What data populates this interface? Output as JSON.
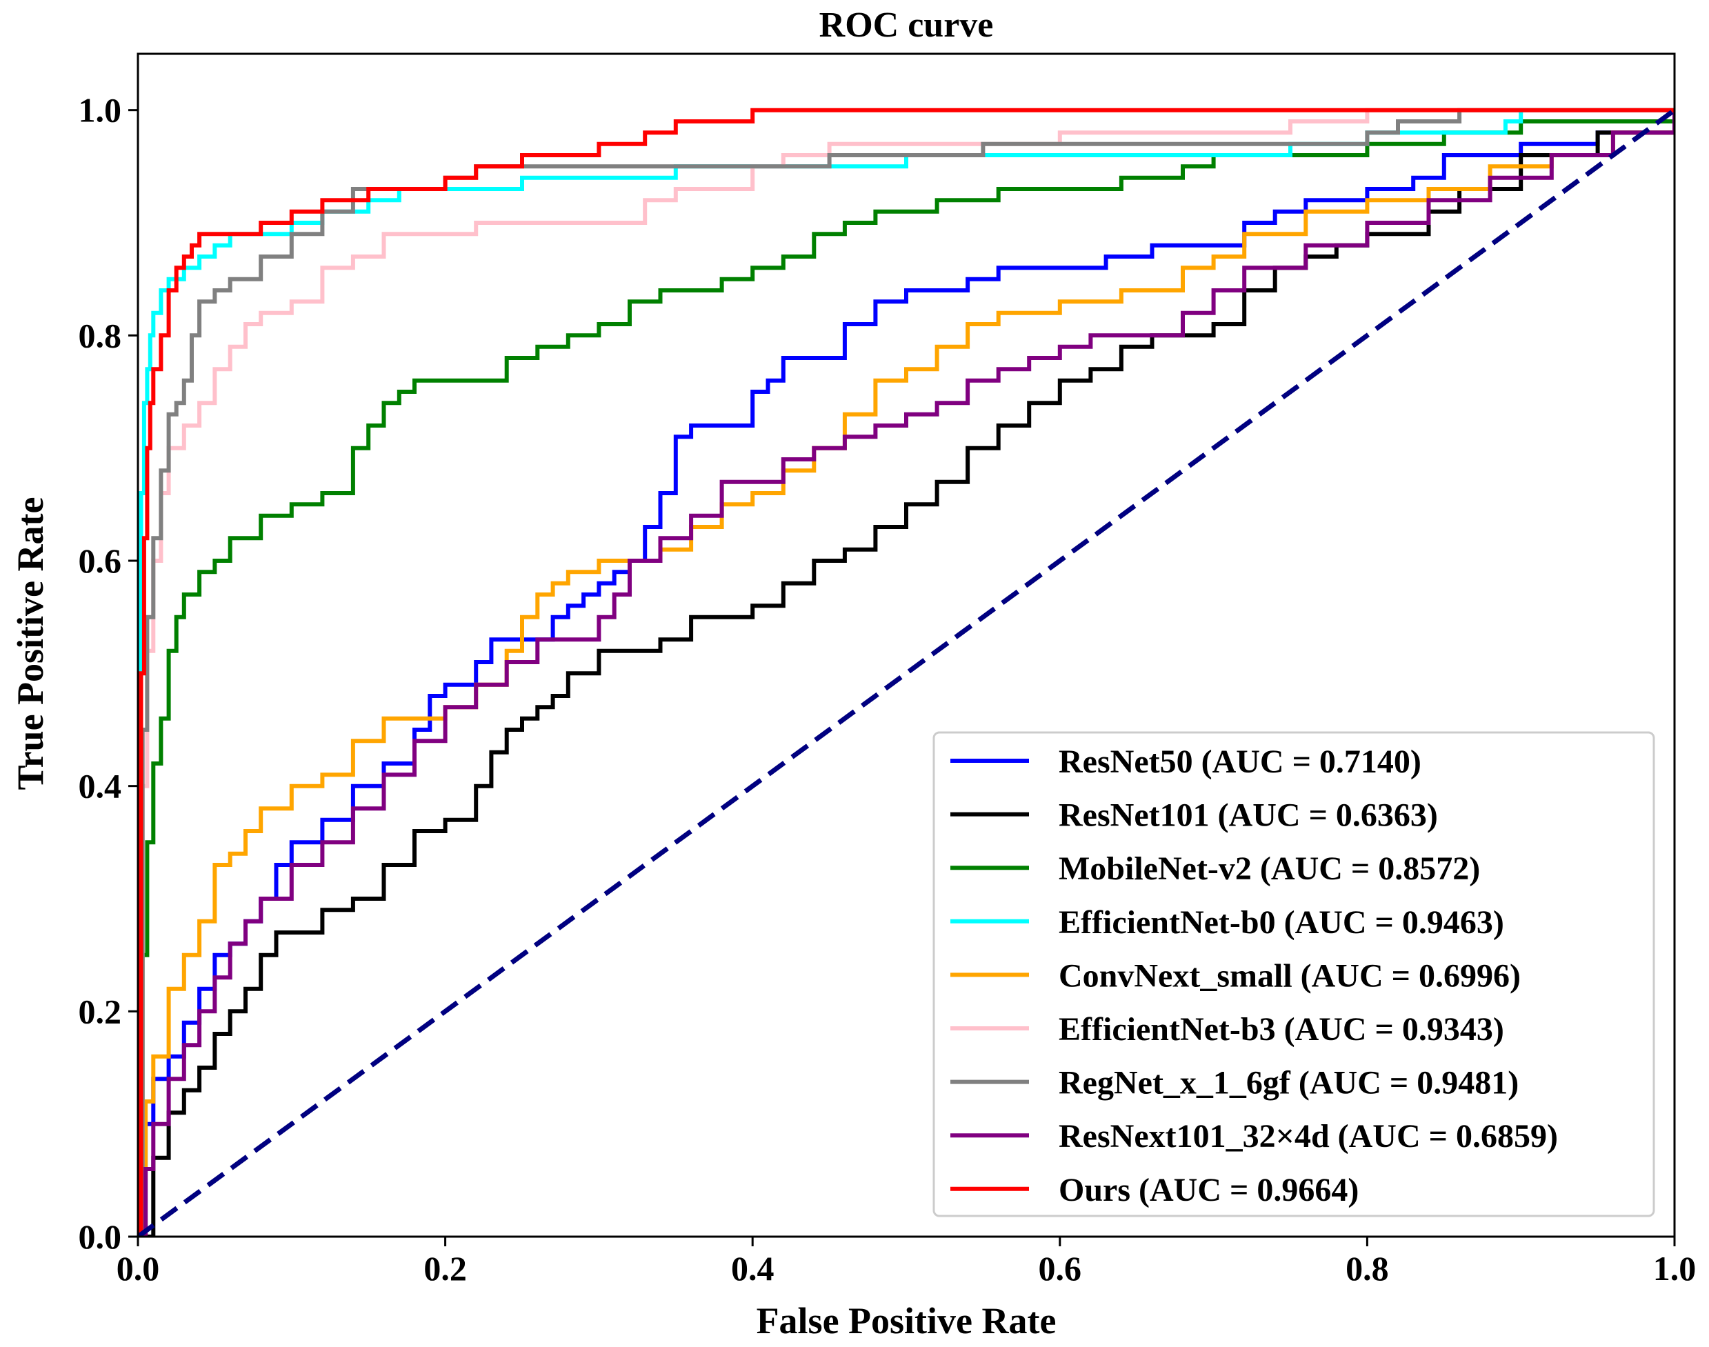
{
  "chart_data": {
    "type": "line",
    "title": "ROC curve",
    "xlabel": "False Positive Rate",
    "ylabel": "True Positive Rate",
    "xlim": [
      0.0,
      1.0
    ],
    "ylim": [
      0.0,
      1.05
    ],
    "xticks": [
      "0.0",
      "0.2",
      "0.4",
      "0.6",
      "0.8",
      "1.0"
    ],
    "yticks": [
      "0.0",
      "0.2",
      "0.4",
      "0.6",
      "0.8",
      "1.0"
    ],
    "grid": false,
    "legend_position": "bottom-right",
    "diagonal": {
      "color": "#000080",
      "x": [
        0,
        1
      ],
      "y": [
        0,
        1
      ]
    },
    "series": [
      {
        "name": "ResNet50 (AUC = 0.7140)",
        "color": "#0000ff",
        "x": [
          0,
          0.005,
          0.01,
          0.02,
          0.03,
          0.04,
          0.05,
          0.06,
          0.07,
          0.08,
          0.09,
          0.1,
          0.12,
          0.14,
          0.16,
          0.18,
          0.19,
          0.2,
          0.22,
          0.23,
          0.25,
          0.27,
          0.28,
          0.29,
          0.3,
          0.31,
          0.32,
          0.33,
          0.34,
          0.35,
          0.36,
          0.38,
          0.4,
          0.41,
          0.42,
          0.43,
          0.44,
          0.46,
          0.48,
          0.5,
          0.52,
          0.54,
          0.56,
          0.6,
          0.63,
          0.66,
          0.7,
          0.72,
          0.74,
          0.76,
          0.78,
          0.8,
          0.83,
          0.85,
          0.9,
          0.95,
          1.0
        ],
        "y": [
          0,
          0.1,
          0.14,
          0.16,
          0.19,
          0.22,
          0.25,
          0.26,
          0.28,
          0.3,
          0.33,
          0.35,
          0.37,
          0.4,
          0.42,
          0.45,
          0.48,
          0.49,
          0.51,
          0.53,
          0.53,
          0.55,
          0.56,
          0.57,
          0.58,
          0.59,
          0.6,
          0.63,
          0.66,
          0.71,
          0.72,
          0.72,
          0.75,
          0.76,
          0.78,
          0.78,
          0.78,
          0.81,
          0.83,
          0.84,
          0.84,
          0.85,
          0.86,
          0.86,
          0.87,
          0.88,
          0.88,
          0.9,
          0.91,
          0.92,
          0.92,
          0.93,
          0.94,
          0.96,
          0.97,
          0.98,
          1.0
        ]
      },
      {
        "name": "ResNet101 (AUC = 0.6363)",
        "color": "#000000",
        "x": [
          0,
          0.01,
          0.02,
          0.03,
          0.04,
          0.05,
          0.06,
          0.07,
          0.08,
          0.09,
          0.1,
          0.12,
          0.14,
          0.16,
          0.18,
          0.2,
          0.22,
          0.23,
          0.24,
          0.25,
          0.26,
          0.27,
          0.28,
          0.3,
          0.32,
          0.34,
          0.36,
          0.38,
          0.4,
          0.42,
          0.44,
          0.46,
          0.48,
          0.5,
          0.52,
          0.54,
          0.56,
          0.58,
          0.6,
          0.62,
          0.64,
          0.66,
          0.68,
          0.7,
          0.72,
          0.74,
          0.76,
          0.78,
          0.8,
          0.82,
          0.84,
          0.86,
          0.9,
          0.95,
          1.0
        ],
        "y": [
          0,
          0.07,
          0.11,
          0.13,
          0.15,
          0.18,
          0.2,
          0.22,
          0.25,
          0.27,
          0.27,
          0.29,
          0.3,
          0.33,
          0.36,
          0.37,
          0.4,
          0.43,
          0.45,
          0.46,
          0.47,
          0.48,
          0.5,
          0.52,
          0.52,
          0.53,
          0.55,
          0.55,
          0.56,
          0.58,
          0.6,
          0.61,
          0.63,
          0.65,
          0.67,
          0.7,
          0.72,
          0.74,
          0.76,
          0.77,
          0.79,
          0.8,
          0.8,
          0.81,
          0.84,
          0.86,
          0.87,
          0.88,
          0.89,
          0.89,
          0.91,
          0.93,
          0.96,
          0.98,
          1.0
        ]
      },
      {
        "name": "MobileNet-v2 (AUC = 0.8572)",
        "color": "#008000",
        "x": [
          0,
          0.003,
          0.006,
          0.01,
          0.015,
          0.02,
          0.025,
          0.03,
          0.04,
          0.05,
          0.06,
          0.08,
          0.1,
          0.12,
          0.14,
          0.15,
          0.16,
          0.17,
          0.18,
          0.2,
          0.22,
          0.24,
          0.26,
          0.28,
          0.3,
          0.32,
          0.34,
          0.36,
          0.38,
          0.4,
          0.42,
          0.44,
          0.46,
          0.48,
          0.5,
          0.52,
          0.54,
          0.56,
          0.6,
          0.64,
          0.68,
          0.7,
          0.75,
          0.8,
          0.85,
          0.9,
          0.95,
          1.0
        ],
        "y": [
          0,
          0.25,
          0.35,
          0.42,
          0.46,
          0.52,
          0.55,
          0.57,
          0.59,
          0.6,
          0.62,
          0.64,
          0.65,
          0.66,
          0.7,
          0.72,
          0.74,
          0.75,
          0.76,
          0.76,
          0.76,
          0.78,
          0.79,
          0.8,
          0.81,
          0.83,
          0.84,
          0.84,
          0.85,
          0.86,
          0.87,
          0.89,
          0.9,
          0.91,
          0.91,
          0.92,
          0.92,
          0.93,
          0.93,
          0.94,
          0.95,
          0.96,
          0.96,
          0.97,
          0.98,
          0.99,
          0.99,
          1.0
        ]
      },
      {
        "name": "EfficientNet-b0 (AUC = 0.9463)",
        "color": "#00ffff",
        "x": [
          0,
          0.002,
          0.004,
          0.006,
          0.008,
          0.01,
          0.015,
          0.02,
          0.03,
          0.04,
          0.05,
          0.06,
          0.08,
          0.1,
          0.12,
          0.15,
          0.17,
          0.2,
          0.25,
          0.3,
          0.35,
          0.4,
          0.45,
          0.5,
          0.6,
          0.7,
          0.75,
          0.8,
          0.85,
          0.89,
          0.9,
          1.0
        ],
        "y": [
          0,
          0.66,
          0.74,
          0.77,
          0.8,
          0.82,
          0.84,
          0.85,
          0.86,
          0.87,
          0.88,
          0.89,
          0.89,
          0.9,
          0.91,
          0.92,
          0.93,
          0.93,
          0.94,
          0.94,
          0.95,
          0.95,
          0.95,
          0.96,
          0.96,
          0.96,
          0.97,
          0.98,
          0.98,
          0.99,
          1.0,
          1.0
        ]
      },
      {
        "name": "ConvNext_small (AUC = 0.6996)",
        "color": "#ffa500",
        "x": [
          0,
          0.005,
          0.01,
          0.02,
          0.03,
          0.04,
          0.05,
          0.06,
          0.07,
          0.08,
          0.1,
          0.12,
          0.14,
          0.16,
          0.18,
          0.2,
          0.22,
          0.24,
          0.25,
          0.26,
          0.27,
          0.28,
          0.3,
          0.32,
          0.34,
          0.36,
          0.38,
          0.4,
          0.42,
          0.44,
          0.46,
          0.48,
          0.5,
          0.52,
          0.54,
          0.56,
          0.6,
          0.64,
          0.68,
          0.7,
          0.72,
          0.76,
          0.8,
          0.84,
          0.88,
          0.92,
          0.96,
          1.0
        ],
        "y": [
          0,
          0.12,
          0.16,
          0.22,
          0.25,
          0.28,
          0.33,
          0.34,
          0.36,
          0.38,
          0.4,
          0.41,
          0.44,
          0.46,
          0.46,
          0.47,
          0.49,
          0.52,
          0.55,
          0.57,
          0.58,
          0.59,
          0.6,
          0.6,
          0.61,
          0.63,
          0.65,
          0.66,
          0.68,
          0.7,
          0.73,
          0.76,
          0.77,
          0.79,
          0.81,
          0.82,
          0.83,
          0.84,
          0.86,
          0.87,
          0.89,
          0.91,
          0.92,
          0.93,
          0.95,
          0.96,
          0.98,
          1.0
        ]
      },
      {
        "name": "EfficientNet-b3 (AUC = 0.9343)",
        "color": "#ffc0cb",
        "x": [
          0,
          0.003,
          0.006,
          0.01,
          0.015,
          0.02,
          0.03,
          0.04,
          0.05,
          0.06,
          0.07,
          0.08,
          0.1,
          0.12,
          0.14,
          0.16,
          0.18,
          0.2,
          0.22,
          0.25,
          0.28,
          0.31,
          0.33,
          0.35,
          0.4,
          0.42,
          0.45,
          0.5,
          0.55,
          0.6,
          0.65,
          0.7,
          0.75,
          0.79,
          0.8,
          0.85,
          1.0
        ],
        "y": [
          0,
          0.4,
          0.52,
          0.6,
          0.66,
          0.7,
          0.72,
          0.74,
          0.77,
          0.79,
          0.81,
          0.82,
          0.83,
          0.86,
          0.87,
          0.89,
          0.89,
          0.89,
          0.9,
          0.9,
          0.9,
          0.9,
          0.92,
          0.93,
          0.95,
          0.96,
          0.97,
          0.97,
          0.97,
          0.98,
          0.98,
          0.98,
          0.99,
          0.99,
          1.0,
          1.0,
          1.0
        ]
      },
      {
        "name": "RegNet_x_1_6gf (AUC = 0.9481)",
        "color": "#808080",
        "x": [
          0,
          0.003,
          0.006,
          0.01,
          0.015,
          0.02,
          0.025,
          0.03,
          0.035,
          0.04,
          0.05,
          0.06,
          0.08,
          0.1,
          0.12,
          0.14,
          0.16,
          0.18,
          0.2,
          0.22,
          0.25,
          0.3,
          0.35,
          0.4,
          0.45,
          0.5,
          0.55,
          0.6,
          0.65,
          0.7,
          0.75,
          0.8,
          0.82,
          0.85,
          0.86,
          1.0
        ],
        "y": [
          0,
          0.45,
          0.55,
          0.62,
          0.68,
          0.73,
          0.74,
          0.76,
          0.8,
          0.83,
          0.84,
          0.85,
          0.87,
          0.89,
          0.91,
          0.93,
          0.93,
          0.93,
          0.94,
          0.95,
          0.95,
          0.95,
          0.95,
          0.95,
          0.96,
          0.96,
          0.97,
          0.97,
          0.97,
          0.97,
          0.97,
          0.98,
          0.99,
          0.99,
          1.0,
          1.0
        ]
      },
      {
        "name": "ResNext101_32×4d (AUC = 0.6859)",
        "color": "#800080",
        "x": [
          0,
          0.005,
          0.01,
          0.02,
          0.03,
          0.04,
          0.05,
          0.06,
          0.07,
          0.08,
          0.1,
          0.12,
          0.14,
          0.16,
          0.18,
          0.2,
          0.22,
          0.24,
          0.26,
          0.28,
          0.3,
          0.31,
          0.32,
          0.34,
          0.36,
          0.38,
          0.4,
          0.42,
          0.44,
          0.46,
          0.48,
          0.5,
          0.52,
          0.54,
          0.56,
          0.58,
          0.6,
          0.62,
          0.66,
          0.68,
          0.7,
          0.72,
          0.76,
          0.8,
          0.84,
          0.88,
          0.92,
          0.96,
          1.0
        ],
        "y": [
          0,
          0.06,
          0.1,
          0.14,
          0.17,
          0.2,
          0.23,
          0.26,
          0.28,
          0.3,
          0.33,
          0.35,
          0.38,
          0.41,
          0.44,
          0.47,
          0.49,
          0.51,
          0.53,
          0.53,
          0.55,
          0.57,
          0.6,
          0.62,
          0.64,
          0.67,
          0.67,
          0.69,
          0.7,
          0.71,
          0.72,
          0.73,
          0.74,
          0.76,
          0.77,
          0.78,
          0.79,
          0.8,
          0.8,
          0.82,
          0.84,
          0.86,
          0.88,
          0.9,
          0.92,
          0.94,
          0.96,
          0.98,
          1.0
        ]
      },
      {
        "name": "Ours (AUC = 0.9664)",
        "color": "#ff0000",
        "x": [
          0,
          0.002,
          0.004,
          0.006,
          0.008,
          0.01,
          0.015,
          0.02,
          0.025,
          0.03,
          0.035,
          0.04,
          0.06,
          0.08,
          0.1,
          0.12,
          0.15,
          0.2,
          0.22,
          0.25,
          0.3,
          0.32,
          0.33,
          0.34,
          0.35,
          0.36,
          0.4,
          0.45,
          0.5,
          0.6,
          0.7,
          0.8,
          0.9,
          1.0
        ],
        "y": [
          0,
          0.5,
          0.62,
          0.7,
          0.74,
          0.77,
          0.8,
          0.84,
          0.86,
          0.87,
          0.88,
          0.89,
          0.89,
          0.9,
          0.91,
          0.92,
          0.93,
          0.94,
          0.95,
          0.96,
          0.97,
          0.97,
          0.98,
          0.98,
          0.99,
          0.99,
          1.0,
          1.0,
          1.0,
          1.0,
          1.0,
          1.0,
          1.0,
          1.0
        ]
      }
    ]
  }
}
